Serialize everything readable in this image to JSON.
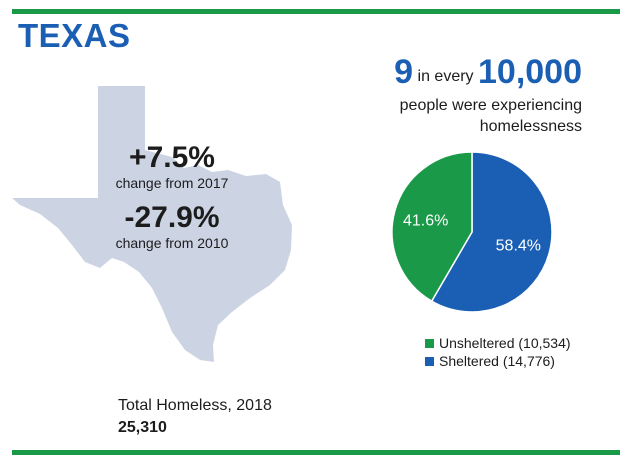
{
  "header": {
    "state": "TEXAS"
  },
  "stats": [
    {
      "value": "+7.5%",
      "label": "change from 2017"
    },
    {
      "value": "-27.9%",
      "label": "change from 2010"
    }
  ],
  "rate": {
    "number": "9",
    "connector": "in every",
    "denominator": "10,000",
    "line2": "people were experiencing",
    "line3": "homelessness"
  },
  "total": {
    "label": "Total Homeless, 2018",
    "value": "25,310"
  },
  "colors": {
    "unsheltered": "#1a9a48",
    "sheltered": "#1a5fb4",
    "map": "#ccd4e4",
    "rule": "#1a9a48"
  },
  "chart_data": {
    "type": "pie",
    "slices": [
      {
        "label": "Unsheltered (10,534)",
        "value": 41.6,
        "display": "41.6%",
        "color": "#1a9a48"
      },
      {
        "label": "Sheltered (14,776)",
        "value": 58.4,
        "display": "58.4%",
        "color": "#1a5fb4"
      }
    ]
  }
}
